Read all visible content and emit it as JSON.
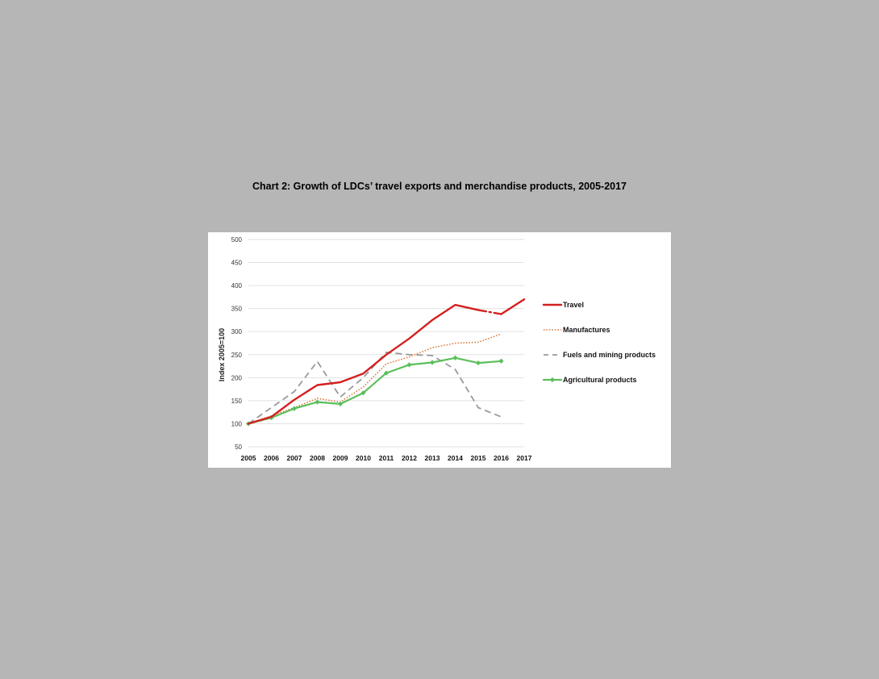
{
  "title": "Chart 2:  Growth of LDCs’ travel exports and merchandise products, 2005-2017",
  "chart_data": {
    "type": "line",
    "title": "Chart 2:  Growth of LDCs’ travel exports and merchandise products, 2005-2017",
    "xlabel": "",
    "ylabel": "Index 2005=100",
    "x": [
      "2005",
      "2006",
      "2007",
      "2008",
      "2009",
      "2010",
      "2011",
      "2012",
      "2013",
      "2014",
      "2015",
      "2016",
      "2017"
    ],
    "ylim": [
      50,
      500
    ],
    "yticks": [
      50,
      100,
      150,
      200,
      250,
      300,
      350,
      400,
      450,
      500
    ],
    "grid": true,
    "legend_position": "right",
    "series": [
      {
        "name": "Travel",
        "color": "#d42020",
        "style": "solid",
        "values": [
          100,
          115,
          152,
          184,
          190,
          209,
          250,
          285,
          325,
          358,
          347,
          338,
          370
        ]
      },
      {
        "name": "Manufactures",
        "color": "#d87a3c",
        "style": "dotted",
        "values": [
          100,
          117,
          135,
          155,
          147,
          180,
          230,
          245,
          265,
          275,
          277,
          295,
          null
        ]
      },
      {
        "name": "Fuels and mining products",
        "color": "#9a9a9a",
        "style": "dashed",
        "values": [
          100,
          135,
          170,
          235,
          158,
          200,
          255,
          250,
          248,
          218,
          135,
          115,
          null
        ]
      },
      {
        "name": "Agricultural products",
        "color": "#5cbf5c",
        "style": "solid-marker",
        "values": [
          100,
          113,
          133,
          147,
          143,
          167,
          210,
          228,
          233,
          243,
          232,
          236,
          null
        ]
      }
    ]
  }
}
